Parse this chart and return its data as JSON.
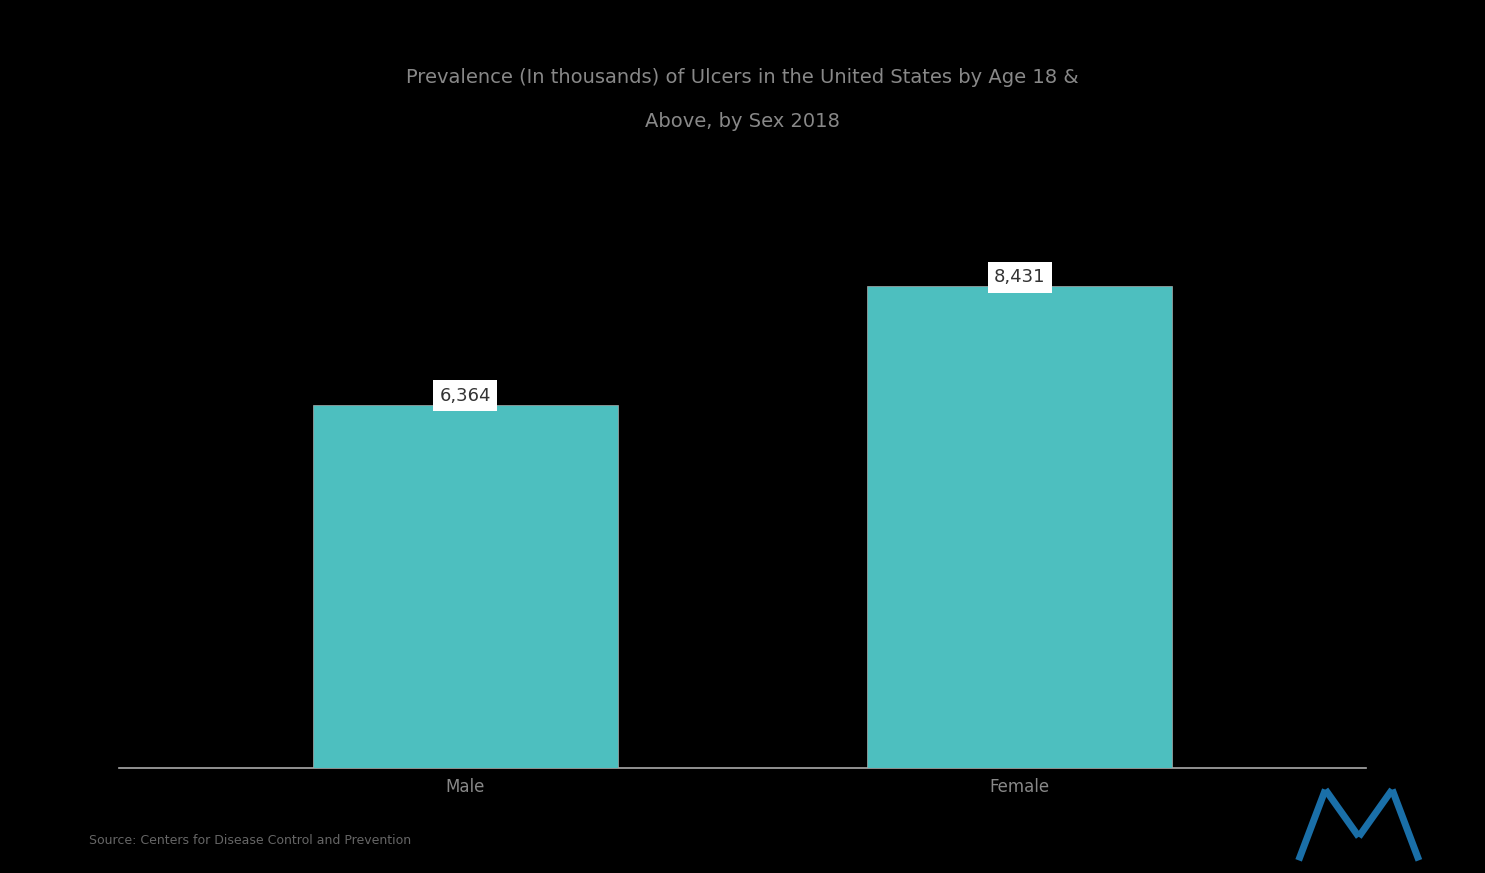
{
  "title_line1": "Prevalence (In thousands) of Ulcers in the United States by Age 18 &",
  "title_line2": "Above, by Sex 2018",
  "categories": [
    "Male",
    "Female"
  ],
  "values": [
    6364,
    8431
  ],
  "bar_color": "#4DBFBF",
  "bar_width": 0.22,
  "label_fontsize": 12,
  "value_fontsize": 13,
  "title_fontsize": 14,
  "background_color": "#000000",
  "text_color": "#888888",
  "axis_line_color": "#aaaaaa",
  "source_text": "Source: Centers for Disease Control and Prevention",
  "ylim": [
    0,
    11000
  ],
  "value_box_color": "#ffffff",
  "value_text_color": "#333333",
  "bar_positions": [
    0.3,
    0.7
  ]
}
